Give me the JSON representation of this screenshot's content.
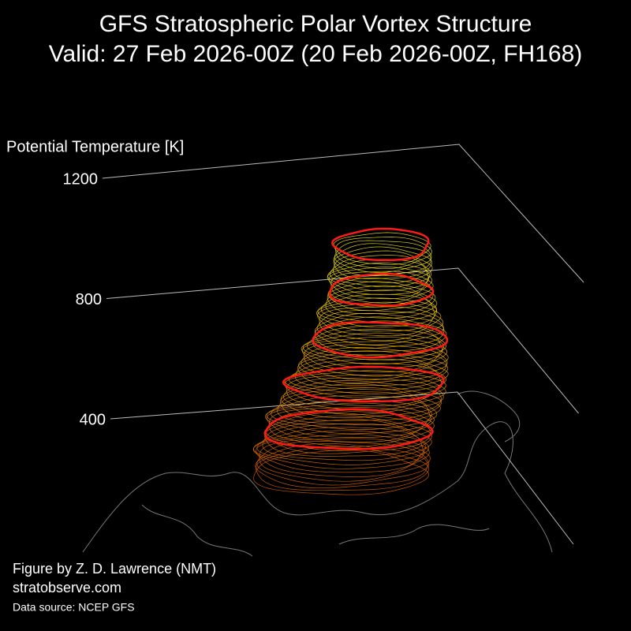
{
  "chart_data": {
    "type": "vortex3d",
    "title": "GFS Stratospheric Polar Vortex Structure",
    "subtitle": "Valid: 27 Feb 2026-00Z  (20 Feb 2026-00Z, FH168)",
    "zlabel": "Potential Temperature [K]",
    "zlim": [
      400,
      1200
    ],
    "zticks": [
      400,
      800,
      1200
    ],
    "credit": "Figure by Z. D. Lawrence (NMT)",
    "website": "stratobserve.com",
    "source": "Data source: NCEP GFS"
  }
}
